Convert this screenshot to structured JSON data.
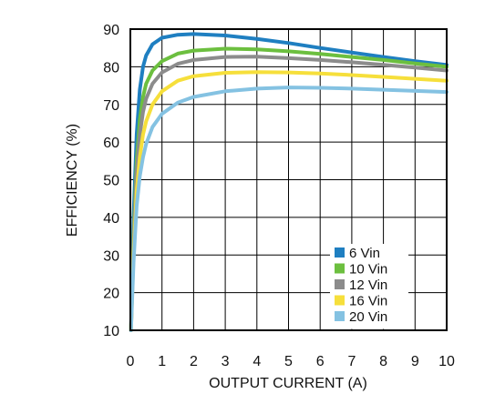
{
  "chart_data": {
    "type": "line",
    "xlabel": "OUTPUT CURRENT (A)",
    "ylabel": "EFFICIENCY (%)",
    "xlim": [
      0,
      10
    ],
    "ylim": [
      10,
      90
    ],
    "x_ticks": [
      0,
      1,
      2,
      3,
      4,
      5,
      6,
      7,
      8,
      9,
      10
    ],
    "y_ticks": [
      10,
      20,
      30,
      40,
      50,
      60,
      70,
      80,
      90
    ],
    "grid": true,
    "legend_position": "bottom-right",
    "series": [
      {
        "name": "6 Vin",
        "color": "#1f7fc1",
        "points": [
          [
            0.02,
            10
          ],
          [
            0.1,
            40
          ],
          [
            0.2,
            62
          ],
          [
            0.3,
            74
          ],
          [
            0.4,
            80
          ],
          [
            0.5,
            83
          ],
          [
            0.7,
            86
          ],
          [
            1,
            87.7
          ],
          [
            1.5,
            88.5
          ],
          [
            2,
            88.7
          ],
          [
            3,
            88.3
          ],
          [
            4,
            87.4
          ],
          [
            5,
            86.3
          ],
          [
            6,
            85
          ],
          [
            7,
            83.8
          ],
          [
            8,
            82.6
          ],
          [
            9,
            81.5
          ],
          [
            10,
            80.5
          ]
        ]
      },
      {
        "name": "10 Vin",
        "color": "#6cbf3f",
        "points": [
          [
            0.02,
            10
          ],
          [
            0.1,
            35
          ],
          [
            0.2,
            55
          ],
          [
            0.3,
            66
          ],
          [
            0.4,
            72
          ],
          [
            0.5,
            75.5
          ],
          [
            0.7,
            79
          ],
          [
            1,
            81.5
          ],
          [
            1.5,
            83.5
          ],
          [
            2,
            84.3
          ],
          [
            3,
            84.8
          ],
          [
            4,
            84.6
          ],
          [
            5,
            84.1
          ],
          [
            6,
            83.4
          ],
          [
            7,
            82.6
          ],
          [
            8,
            81.8
          ],
          [
            9,
            80.9
          ],
          [
            10,
            80
          ]
        ]
      },
      {
        "name": "12 Vin",
        "color": "#8c8c8c",
        "points": [
          [
            0.02,
            10
          ],
          [
            0.1,
            33
          ],
          [
            0.2,
            52
          ],
          [
            0.3,
            62
          ],
          [
            0.4,
            68
          ],
          [
            0.5,
            71.5
          ],
          [
            0.7,
            75.5
          ],
          [
            1,
            78.5
          ],
          [
            1.5,
            80.8
          ],
          [
            2,
            81.8
          ],
          [
            3,
            82.6
          ],
          [
            4,
            82.7
          ],
          [
            5,
            82.3
          ],
          [
            6,
            81.8
          ],
          [
            7,
            81.2
          ],
          [
            8,
            80.5
          ],
          [
            9,
            79.8
          ],
          [
            10,
            79
          ]
        ]
      },
      {
        "name": "16 Vin",
        "color": "#f6df3b",
        "points": [
          [
            0.02,
            10
          ],
          [
            0.1,
            30
          ],
          [
            0.2,
            47
          ],
          [
            0.3,
            56
          ],
          [
            0.4,
            62
          ],
          [
            0.5,
            65.5
          ],
          [
            0.7,
            70
          ],
          [
            1,
            73.5
          ],
          [
            1.5,
            76.3
          ],
          [
            2,
            77.5
          ],
          [
            3,
            78.4
          ],
          [
            4,
            78.6
          ],
          [
            5,
            78.5
          ],
          [
            6,
            78.2
          ],
          [
            7,
            77.8
          ],
          [
            8,
            77.3
          ],
          [
            9,
            76.8
          ],
          [
            10,
            76.3
          ]
        ]
      },
      {
        "name": "20 Vin",
        "color": "#84c2e2",
        "points": [
          [
            0.02,
            10
          ],
          [
            0.1,
            28
          ],
          [
            0.2,
            43
          ],
          [
            0.3,
            51
          ],
          [
            0.4,
            56
          ],
          [
            0.5,
            59.5
          ],
          [
            0.7,
            64
          ],
          [
            1,
            67.5
          ],
          [
            1.5,
            70.5
          ],
          [
            2,
            72
          ],
          [
            3,
            73.5
          ],
          [
            4,
            74.2
          ],
          [
            5,
            74.5
          ],
          [
            6,
            74.4
          ],
          [
            7,
            74.2
          ],
          [
            8,
            73.9
          ],
          [
            9,
            73.6
          ],
          [
            10,
            73.3
          ]
        ]
      }
    ]
  }
}
